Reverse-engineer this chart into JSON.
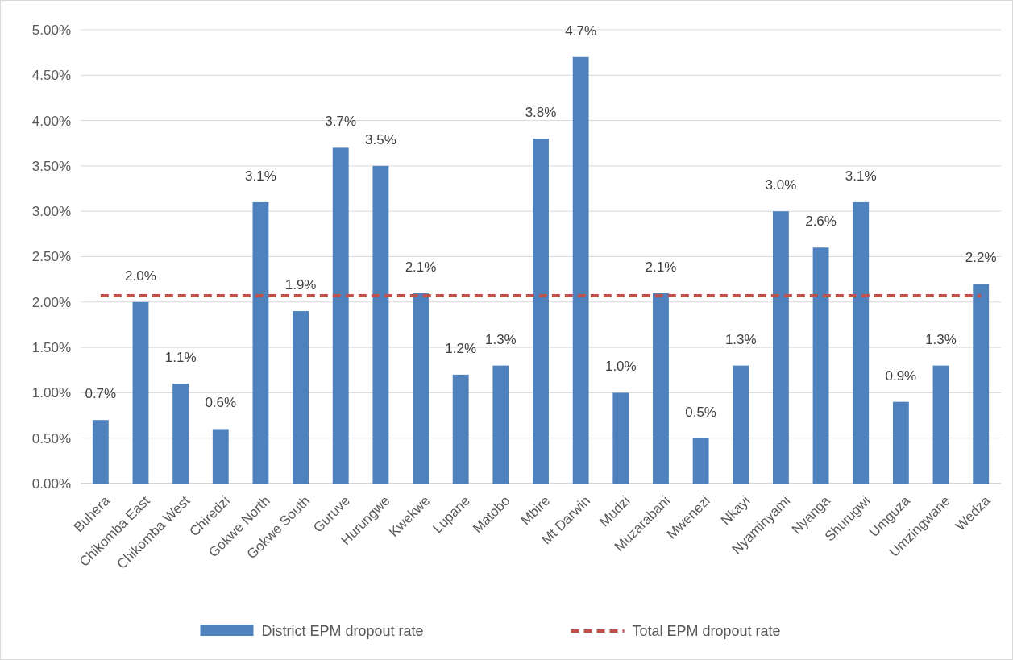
{
  "chart_data": {
    "type": "bar",
    "categories": [
      "Buhera",
      "Chikomba East",
      "Chikomba West",
      "Chiredzi",
      "Gokwe North",
      "Gokwe South",
      "Guruve",
      "Hurungwe",
      "Kwekwe",
      "Lupane",
      "Matobo",
      "Mbire",
      "Mt Darwin",
      "Mudzi",
      "Muzarabani",
      "Mwenezi",
      "Nkayi",
      "Nyaminyami",
      "Nyanga",
      "Shurugwi",
      "Umguza",
      "Umzingwane",
      "Wedza"
    ],
    "series": [
      {
        "name": "District EPM dropout rate",
        "color": "#4f81bd",
        "values": [
          0.7,
          2.0,
          1.1,
          0.6,
          3.1,
          1.9,
          3.7,
          3.5,
          2.1,
          1.2,
          1.3,
          3.8,
          4.7,
          1.0,
          2.1,
          0.5,
          1.3,
          3.0,
          2.6,
          3.1,
          0.9,
          1.3,
          2.2
        ]
      },
      {
        "name": "Total EPM dropout rate",
        "type": "line",
        "color": "#c0504d",
        "line_style": "dashed",
        "values": [
          2.07,
          2.07,
          2.07,
          2.07,
          2.07,
          2.07,
          2.07,
          2.07,
          2.07,
          2.07,
          2.07,
          2.07,
          2.07,
          2.07,
          2.07,
          2.07,
          2.07,
          2.07,
          2.07,
          2.07,
          2.07,
          2.07,
          2.07
        ]
      }
    ],
    "value_labels": [
      "0.7%",
      "2.0%",
      "1.1%",
      "0.6%",
      "3.1%",
      "1.9%",
      "3.7%",
      "3.5%",
      "2.1%",
      "1.2%",
      "1.3%",
      "3.8%",
      "4.7%",
      "1.0%",
      "2.1%",
      "0.5%",
      "1.3%",
      "3.0%",
      "2.6%",
      "3.1%",
      "0.9%",
      "1.3%",
      "2.2%"
    ],
    "ylim": [
      0,
      5
    ],
    "yticks": [
      {
        "value": 0,
        "label": "0.00%"
      },
      {
        "value": 0.5,
        "label": "0.50%"
      },
      {
        "value": 1,
        "label": "1.00%"
      },
      {
        "value": 1.5,
        "label": "1.50%"
      },
      {
        "value": 2,
        "label": "2.00%"
      },
      {
        "value": 2.5,
        "label": "2.50%"
      },
      {
        "value": 3,
        "label": "3.00%"
      },
      {
        "value": 3.5,
        "label": "3.50%"
      },
      {
        "value": 4,
        "label": "4.00%"
      },
      {
        "value": 4.5,
        "label": "4.50%"
      },
      {
        "value": 5,
        "label": "5.00%"
      }
    ],
    "grid": "y",
    "legend": "bottom"
  }
}
